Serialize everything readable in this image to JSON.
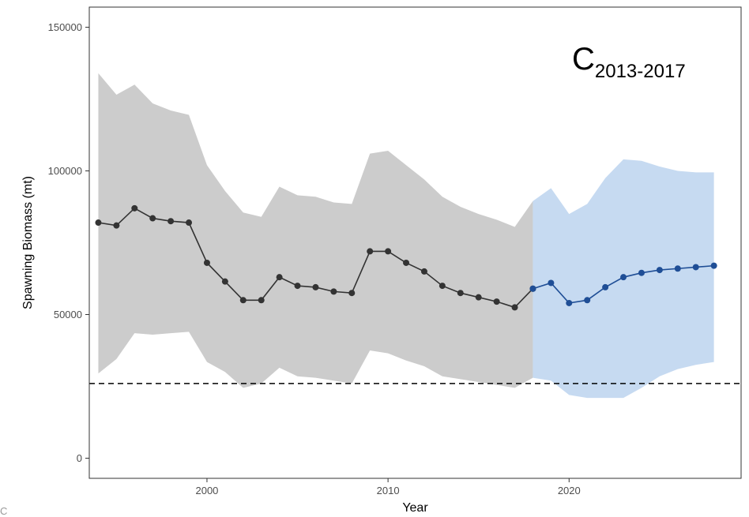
{
  "chart_data": {
    "type": "line",
    "title": "",
    "xlabel": "Year",
    "ylabel": "Spawning Biomass (mt)",
    "panel_label": {
      "main": "C",
      "subscript": "2013-2017"
    },
    "xlim": [
      1993.5,
      2029.5
    ],
    "ylim": [
      -7000,
      157000
    ],
    "x_ticks": [
      2000,
      2010,
      2020
    ],
    "y_ticks": [
      0,
      50000,
      100000,
      150000
    ],
    "y_tick_labels": [
      "0",
      "50000",
      "100000",
      "150000"
    ],
    "grid": false,
    "reference_line": {
      "y": 26000,
      "style": "dashed",
      "color": "#000000"
    },
    "series": [
      {
        "color": "#333333",
        "band_color": "#cccccc",
        "x": [
          1994,
          1995,
          1996,
          1997,
          1998,
          1999,
          2000,
          2001,
          2002,
          2003,
          2004,
          2005,
          2006,
          2007,
          2008,
          2009,
          2010,
          2011,
          2012,
          2013,
          2014,
          2015,
          2016,
          2017,
          2018
        ],
        "y": [
          82000,
          81000,
          87000,
          83500,
          82500,
          82000,
          68000,
          61500,
          55000,
          55000,
          63000,
          60000,
          59500,
          58000,
          57500,
          72000,
          72000,
          68000,
          65000,
          60000,
          57500,
          56000,
          54500,
          52500,
          59000
        ],
        "upper": [
          134000,
          126500,
          130000,
          123500,
          121000,
          119500,
          102000,
          93000,
          85500,
          84000,
          94500,
          91500,
          91000,
          89000,
          88500,
          106000,
          107000,
          102000,
          97000,
          91000,
          87500,
          85000,
          83000,
          80500,
          89500
        ],
        "lower": [
          29500,
          34500,
          43500,
          43000,
          43500,
          44000,
          33500,
          30000,
          24500,
          26000,
          31500,
          28500,
          28000,
          27000,
          26000,
          37500,
          36500,
          34000,
          32000,
          28500,
          27500,
          26500,
          25500,
          24500,
          28000
        ]
      },
      {
        "color": "#1f4e96",
        "band_color": "#c6daf1",
        "x": [
          2018,
          2019,
          2020,
          2021,
          2022,
          2023,
          2024,
          2025,
          2026,
          2027,
          2028
        ],
        "y": [
          59000,
          61000,
          54000,
          55000,
          59500,
          63000,
          64500,
          65500,
          66000,
          66500,
          67000
        ],
        "upper": [
          89500,
          94000,
          85000,
          88500,
          97500,
          104000,
          103500,
          101500,
          100000,
          99500,
          99500
        ],
        "lower": [
          28000,
          27000,
          22000,
          21000,
          21000,
          21000,
          24500,
          28500,
          31000,
          32500,
          33500
        ]
      }
    ]
  },
  "corner_mark": "C"
}
